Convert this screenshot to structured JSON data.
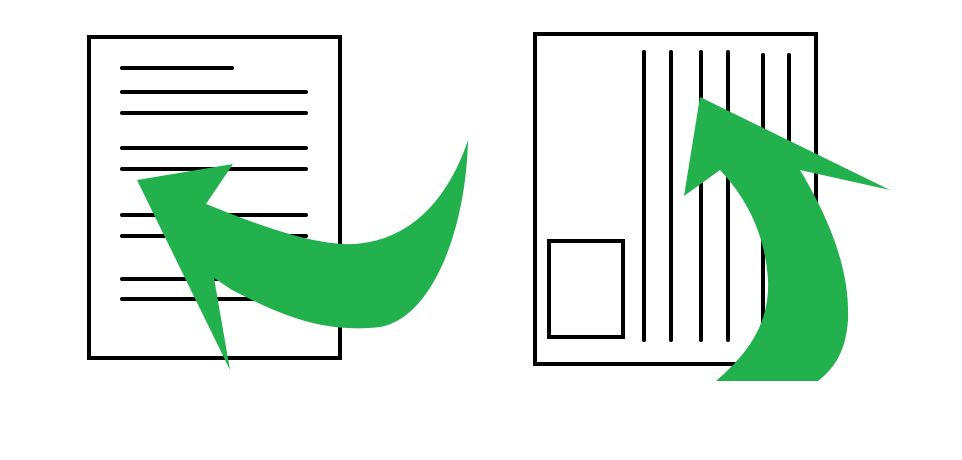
{
  "colors": {
    "background": "#ffffff",
    "ink": "#000000",
    "arrow": "#23b14d"
  },
  "icons": {
    "left_document": "text-lines-document-icon",
    "right_document": "vertical-lines-document-icon",
    "left_arrow": "curved-arrow-left-icon",
    "right_arrow": "curved-arrow-up-icon"
  }
}
